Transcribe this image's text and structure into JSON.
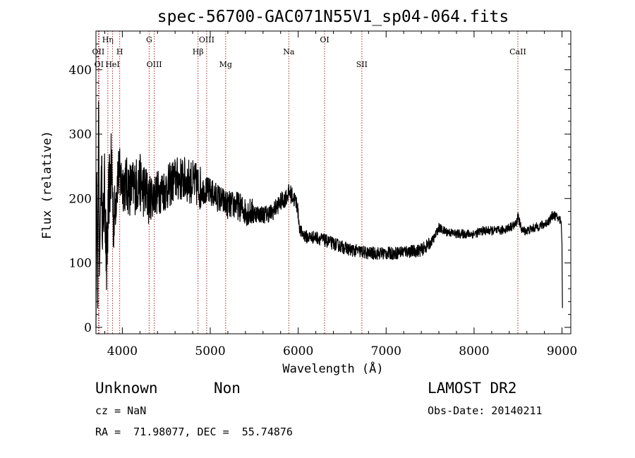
{
  "chart_data": {
    "type": "line",
    "title": "spec-56700-GAC071N55V1_sp04-064.fits",
    "xlabel": "Wavelength (Å)",
    "ylabel": "Flux (relative)",
    "xlim": [
      3700,
      9100
    ],
    "ylim": [
      -10,
      460
    ],
    "xticks": [
      4000,
      5000,
      6000,
      7000,
      8000,
      9000
    ],
    "yticks": [
      0,
      100,
      200,
      300,
      400
    ],
    "grid": false,
    "spectral_lines": [
      {
        "name": "OII",
        "wavelength": 3727,
        "row": 1
      },
      {
        "name": "OI",
        "wavelength": 3735,
        "row": 2
      },
      {
        "name": "Hη",
        "wavelength": 3835,
        "row": 0
      },
      {
        "name": "HeI",
        "wavelength": 3889,
        "row": 2
      },
      {
        "name": "H",
        "wavelength": 3970,
        "row": 1
      },
      {
        "name": "G",
        "wavelength": 4305,
        "row": 0
      },
      {
        "name": "OIII",
        "wavelength": 4363,
        "row": 2
      },
      {
        "name": "Hβ",
        "wavelength": 4861,
        "row": 1
      },
      {
        "name": "OIII",
        "wavelength": 4959,
        "row": 0
      },
      {
        "name": "Mg",
        "wavelength": 5175,
        "row": 2
      },
      {
        "name": "Na",
        "wavelength": 5893,
        "row": 1
      },
      {
        "name": "OI",
        "wavelength": 6300,
        "row": 0
      },
      {
        "name": "SII",
        "wavelength": 6724,
        "row": 2
      },
      {
        "name": "CaII",
        "wavelength": 8498,
        "row": 1
      }
    ],
    "series": [
      {
        "name": "flux",
        "x": [
          3700,
          3710,
          3720,
          3730,
          3740,
          3760,
          3780,
          3800,
          3820,
          3850,
          3880,
          3900,
          3950,
          4000,
          4100,
          4200,
          4300,
          4400,
          4500,
          4600,
          4700,
          4800,
          4900,
          5000,
          5100,
          5200,
          5300,
          5400,
          5500,
          5600,
          5700,
          5800,
          5850,
          5900,
          5950,
          5990,
          6000,
          6020,
          6050,
          6100,
          6200,
          6300,
          6400,
          6500,
          6600,
          6700,
          6800,
          6900,
          7000,
          7100,
          7200,
          7300,
          7400,
          7500,
          7550,
          7600,
          7650,
          7700,
          7800,
          7900,
          8000,
          8100,
          8200,
          8300,
          8400,
          8480,
          8500,
          8520,
          8550,
          8600,
          8700,
          8800,
          8850,
          8900,
          8950,
          8990,
          9000,
          9005
        ],
        "y": [
          0,
          240,
          30,
          350,
          80,
          250,
          150,
          220,
          90,
          215,
          250,
          160,
          240,
          225,
          215,
          225,
          200,
          210,
          215,
          230,
          230,
          225,
          215,
          210,
          200,
          190,
          190,
          180,
          178,
          175,
          178,
          195,
          200,
          210,
          200,
          190,
          175,
          150,
          145,
          140,
          140,
          135,
          130,
          125,
          120,
          118,
          115,
          115,
          115,
          115,
          118,
          118,
          120,
          130,
          140,
          155,
          150,
          148,
          145,
          145,
          145,
          150,
          150,
          150,
          155,
          160,
          175,
          160,
          150,
          150,
          155,
          160,
          165,
          175,
          170,
          165,
          130,
          30
        ]
      }
    ]
  },
  "info": {
    "object_class": "Unknown",
    "object_subclass": "Non",
    "survey": "LAMOST DR2",
    "cz": "cz = NaN",
    "obs_date": "Obs-Date: 20140211",
    "coords": "RA =  71.98077, DEC =  55.74876"
  },
  "colors": {
    "spectrum": "#000000",
    "line_markers": "#b22222",
    "axes": "#000000"
  }
}
